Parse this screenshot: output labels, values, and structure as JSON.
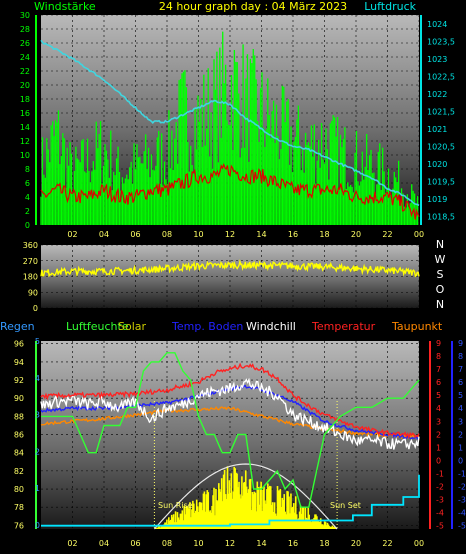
{
  "header": {
    "left_label": "Windstärke",
    "title": "24 hour graph day : 04 März 2023",
    "right_label": "Luftdruck"
  },
  "chart_data": [
    {
      "type": "line",
      "panel": "wind_pressure",
      "x_ticks": [
        "02",
        "04",
        "06",
        "08",
        "10",
        "12",
        "14",
        "16",
        "18",
        "20",
        "22",
        "00"
      ],
      "y_left_ticks": [
        "0",
        "2",
        "4",
        "6",
        "8",
        "10",
        "12",
        "14",
        "16",
        "18",
        "20",
        "22",
        "24",
        "26",
        "28",
        "30"
      ],
      "y_right_ticks": [
        "1018,5",
        "1019",
        "1019,5",
        "1020",
        "1020,5",
        "1021",
        "1021,5",
        "1022",
        "1022,5",
        "1023",
        "1023,5",
        "1024"
      ],
      "ylim_left": [
        0,
        30
      ],
      "ylim_right": [
        1018.25,
        1024.25
      ],
      "series": [
        {
          "key": "pressure",
          "color": "#3fd6e0",
          "axis": "right",
          "x": [
            0,
            2,
            4,
            5,
            6,
            7,
            8,
            9,
            10,
            11,
            12,
            13,
            14,
            15,
            16,
            17,
            18,
            19,
            20,
            21,
            22,
            23,
            24
          ],
          "values": [
            1023.5,
            1023.0,
            1022.4,
            1022.0,
            1021.6,
            1021.2,
            1021.2,
            1021.4,
            1021.6,
            1021.8,
            1021.7,
            1021.3,
            1021.0,
            1020.7,
            1020.5,
            1020.4,
            1020.2,
            1020.0,
            1019.8,
            1019.6,
            1019.3,
            1019.1,
            1018.8
          ]
        },
        {
          "key": "gust",
          "color": "#00ff00",
          "axis": "left",
          "x": [
            0,
            1,
            2,
            3,
            4,
            5,
            6,
            7,
            8,
            9,
            10,
            11,
            12,
            13,
            14,
            15,
            16,
            17,
            18,
            19,
            20,
            21,
            22,
            23,
            24
          ],
          "values": [
            9,
            14,
            8,
            10,
            12,
            8,
            9,
            10,
            11,
            17,
            16,
            18,
            22,
            19,
            17,
            15,
            13,
            12,
            13,
            11,
            10,
            9,
            8,
            6,
            3
          ]
        },
        {
          "key": "wind",
          "color": "#e00000",
          "axis": "left",
          "x": [
            0,
            1,
            2,
            3,
            4,
            5,
            6,
            7,
            8,
            9,
            10,
            11,
            12,
            13,
            14,
            15,
            16,
            17,
            18,
            19,
            20,
            21,
            22,
            23,
            24
          ],
          "values": [
            4,
            5,
            4,
            4,
            5,
            4,
            4,
            5,
            5,
            6,
            7,
            7,
            8,
            7,
            7,
            6,
            5,
            5,
            5,
            5,
            4,
            4,
            4,
            3,
            1
          ]
        }
      ]
    },
    {
      "type": "line",
      "panel": "wind_direction",
      "y_ticks": [
        "0",
        "90",
        "180",
        "270",
        "360"
      ],
      "y_right_labels": [
        "N",
        "W",
        "S",
        "O",
        "N"
      ],
      "ylim": [
        0,
        360
      ],
      "series": [
        {
          "key": "direction",
          "color": "#ffff00",
          "x": [
            0,
            2,
            4,
            6,
            8,
            10,
            12,
            14,
            16,
            18,
            20,
            22,
            24
          ],
          "values": [
            200,
            210,
            210,
            215,
            225,
            240,
            245,
            245,
            240,
            235,
            225,
            215,
            200
          ]
        }
      ]
    },
    {
      "type": "line",
      "panel": "temperature_humidity",
      "legend": [
        {
          "text": "Regen",
          "color": "#3399ff"
        },
        {
          "text": "Luftfeuchte",
          "color": "#33ff33"
        },
        {
          "text": "Solar",
          "color": "#cccc00"
        },
        {
          "text": "Temp. Boden",
          "color": "#2222ff"
        },
        {
          "text": "Windchill",
          "color": "#ffffff"
        },
        {
          "text": "Temperatur",
          "color": "#ff2222"
        },
        {
          "text": "Taupunkt",
          "color": "#ff8800"
        }
      ],
      "annotations": {
        "sunrise": "Sun Rise",
        "sunset": "Sun Set"
      },
      "x_ticks": [
        "02",
        "04",
        "06",
        "08",
        "10",
        "12",
        "14",
        "16",
        "18",
        "20",
        "22",
        "00"
      ],
      "y_hum_ticks": [
        "76",
        "78",
        "80",
        "82",
        "84",
        "86",
        "88",
        "90",
        "92",
        "94",
        "96"
      ],
      "y_rain_ticks": [
        "0",
        "1",
        "2",
        "3",
        "4",
        "5"
      ],
      "y_temp_ticks": [
        "-5",
        "-4",
        "-3",
        "-2",
        "-1",
        "0",
        "1",
        "2",
        "3",
        "4",
        "5",
        "6",
        "7",
        "8",
        "9"
      ],
      "y_temp2_ticks": [
        "-5",
        "-4",
        "-3",
        "-2",
        "-1",
        "0",
        "1",
        "2",
        "3",
        "4",
        "5",
        "6",
        "7",
        "8",
        "9"
      ],
      "ylim_hum": [
        75.6,
        96.3
      ],
      "ylim_temp": [
        -5.25,
        9.15
      ],
      "series": [
        {
          "key": "humidity",
          "color": "#33ff33",
          "axis": "hum",
          "x": [
            0,
            2,
            2.5,
            3,
            3.5,
            4,
            5,
            5.5,
            6,
            6.5,
            7,
            7.5,
            8,
            8.5,
            9,
            9.5,
            10,
            10.5,
            11,
            11.5,
            12,
            12.5,
            13,
            13.5,
            14,
            14.5,
            15,
            15.5,
            16,
            16.5,
            17,
            17.5,
            18,
            19,
            20,
            21,
            22,
            23,
            24
          ],
          "values": [
            88,
            88,
            86,
            84,
            84,
            87,
            87,
            89,
            89,
            93,
            94,
            94,
            95,
            95,
            93,
            92,
            88,
            86,
            86,
            84,
            84,
            86,
            86,
            80,
            80,
            81,
            82,
            80,
            81,
            78,
            78,
            82,
            86,
            88,
            89,
            89,
            90,
            90,
            92
          ]
        },
        {
          "key": "temperature",
          "color": "#ff2222",
          "axis": "temp",
          "x": [
            0,
            2,
            4,
            6,
            8,
            9,
            10,
            11,
            12,
            13,
            14,
            15,
            16,
            17,
            18,
            19,
            20,
            21,
            22,
            23,
            24
          ],
          "values": [
            4.9,
            5.0,
            5.0,
            5.1,
            5.4,
            5.7,
            6.0,
            6.7,
            7.0,
            7.3,
            7.0,
            6.3,
            5.0,
            4.2,
            3.5,
            3.0,
            2.6,
            2.3,
            2.1,
            2.0,
            1.9
          ]
        },
        {
          "key": "windchill",
          "color": "#ffffff",
          "axis": "temp",
          "x": [
            0,
            1,
            2,
            3,
            4,
            5,
            6,
            7,
            8,
            9,
            10,
            11,
            12,
            13,
            14,
            15,
            16,
            17,
            18,
            19,
            20,
            21,
            22,
            23,
            24
          ],
          "values": [
            4.2,
            4.5,
            4.6,
            4.3,
            4.5,
            4.0,
            4.5,
            3.2,
            4.0,
            4.3,
            5.0,
            5.3,
            5.5,
            6.0,
            5.5,
            5.0,
            3.5,
            3.0,
            2.5,
            2.0,
            1.5,
            1.5,
            1.3,
            1.2,
            1.4
          ]
        },
        {
          "key": "soil_temp",
          "color": "#2222ff",
          "axis": "temp",
          "x": [
            0,
            2,
            4,
            6,
            8,
            10,
            12,
            13,
            14,
            15,
            16,
            18,
            20,
            22,
            24
          ],
          "values": [
            3.8,
            4.0,
            4.0,
            4.2,
            4.4,
            4.9,
            5.5,
            5.7,
            5.4,
            5.0,
            4.5,
            3.0,
            2.3,
            2.0,
            1.7
          ]
        },
        {
          "key": "dewpoint",
          "color": "#ff8800",
          "axis": "temp",
          "x": [
            0,
            2,
            4,
            6,
            8,
            10,
            12,
            14,
            16,
            18,
            20,
            22,
            24
          ],
          "values": [
            2.8,
            3.0,
            3.2,
            3.5,
            3.8,
            3.9,
            4.0,
            3.4,
            2.8,
            2.4,
            2.1,
            1.9,
            1.8
          ]
        },
        {
          "key": "rain",
          "color": "#00e5ff",
          "axis": "temp",
          "x": [
            0,
            12,
            12,
            14.5,
            14.5,
            19.8,
            19.8,
            21,
            21,
            23,
            23,
            24,
            24
          ],
          "values": [
            -5,
            -5,
            -4.9,
            -4.9,
            -4.6,
            -4.6,
            -4.2,
            -4.2,
            -3.4,
            -3.4,
            -2.8,
            -2.8,
            -1.1
          ]
        }
      ]
    }
  ]
}
